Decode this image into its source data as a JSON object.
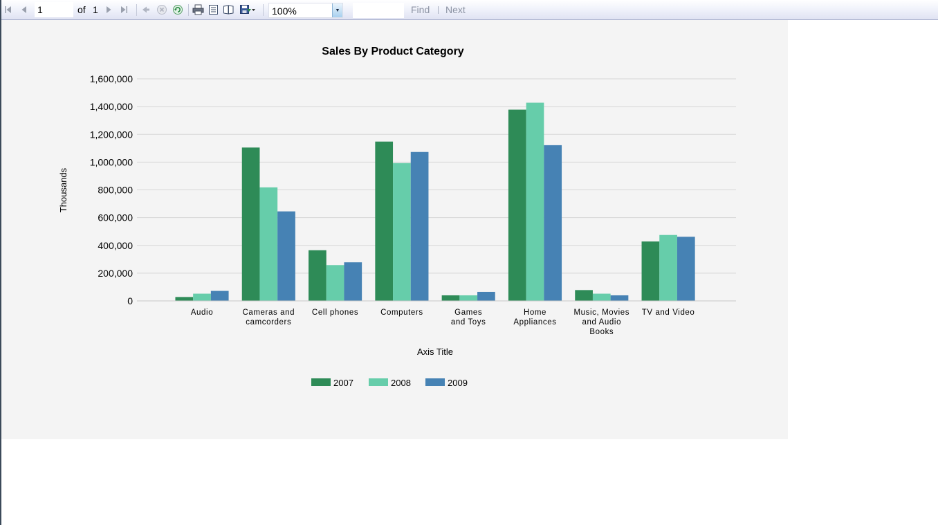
{
  "toolbar": {
    "current_page": "1",
    "of_label": "of",
    "total_pages": "1",
    "zoom": "100%",
    "find_label": "Find",
    "next_label": "Next",
    "icons": [
      "first-page-icon",
      "previous-page-icon",
      "next-page-icon",
      "last-page-icon",
      "back-icon",
      "stop-icon",
      "refresh-icon",
      "print-icon",
      "print-layout-icon",
      "page-setup-icon",
      "export-icon"
    ]
  },
  "colors": {
    "toolbar_bg": "#e8eaf6",
    "report_bg": "#f4f4f4",
    "series_2007": "#2e8b57",
    "series_2008": "#66cdaa",
    "series_2009": "#4682b4"
  },
  "chart_data": {
    "type": "bar",
    "title": "Sales By Product Category",
    "xlabel": "Axis Title",
    "ylabel": "Thousands",
    "ylim": [
      0,
      1600000
    ],
    "yticks": [
      "0",
      "200,000",
      "400,000",
      "600,000",
      "800,000",
      "1,000,000",
      "1,200,000",
      "1,400,000",
      "1,600,000"
    ],
    "grid": true,
    "legend": "bottom-center",
    "categories": [
      [
        "Audio"
      ],
      [
        "Cameras and",
        "camcorders"
      ],
      [
        "Cell phones"
      ],
      [
        "Computers"
      ],
      [
        "Games",
        "and Toys"
      ],
      [
        "Home",
        "Appliances"
      ],
      [
        "Music, Movies",
        "and Audio",
        "Books"
      ],
      [
        "TV and Video"
      ]
    ],
    "series": [
      {
        "name": "2007",
        "color": "#2e8b57",
        "values": [
          28000,
          1105000,
          365000,
          1148000,
          40000,
          1378000,
          78000,
          428000
        ]
      },
      {
        "name": "2008",
        "color": "#66cdaa",
        "values": [
          52000,
          818000,
          258000,
          993000,
          40000,
          1428000,
          52000,
          475000
        ]
      },
      {
        "name": "2009",
        "color": "#4682b4",
        "values": [
          72000,
          645000,
          278000,
          1073000,
          65000,
          1122000,
          40000,
          462000
        ]
      }
    ]
  }
}
